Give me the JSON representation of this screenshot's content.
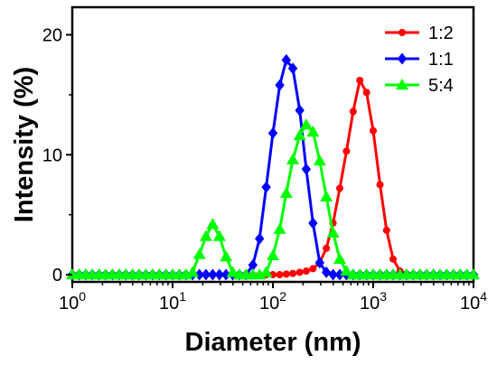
{
  "chart_data": {
    "type": "line",
    "title": "",
    "xlabel": "Diameter (nm)",
    "ylabel": "Intensity (%)",
    "xscale": "log",
    "xlim": [
      1,
      10000
    ],
    "ylim": [
      -0.6,
      22.3
    ],
    "x_ticks": [
      {
        "value": 1,
        "base": "10",
        "exp": "0"
      },
      {
        "value": 10,
        "base": "10",
        "exp": "1"
      },
      {
        "value": 100,
        "base": "10",
        "exp": "2"
      },
      {
        "value": 1000,
        "base": "10",
        "exp": "3"
      },
      {
        "value": 10000,
        "base": "10",
        "exp": "4"
      }
    ],
    "y_ticks": [
      {
        "value": 0,
        "label": "0"
      },
      {
        "value": 10,
        "label": "10"
      },
      {
        "value": 20,
        "label": "20"
      }
    ],
    "grid": false,
    "legend_position": "top-right",
    "x": [
      1.0,
      1.17,
      1.36,
      1.58,
      1.85,
      2.15,
      2.51,
      2.93,
      3.41,
      3.98,
      4.64,
      5.41,
      6.31,
      7.36,
      8.58,
      10.0,
      11.7,
      13.6,
      15.8,
      18.5,
      21.5,
      25.1,
      29.3,
      34.1,
      39.8,
      46.4,
      54.1,
      63.1,
      73.6,
      85.8,
      100.0,
      117,
      136,
      158,
      185,
      215,
      251,
      293,
      341,
      398,
      464,
      541,
      631,
      736,
      858,
      1000,
      1170,
      1360,
      1580,
      1850,
      2150,
      2510,
      2930,
      3410,
      3980,
      4640,
      5410,
      6310,
      7360,
      8580,
      10000
    ],
    "series": [
      {
        "name": "1:2",
        "color": "#ff0000",
        "marker": "circle",
        "values": [
          0,
          0,
          0,
          0,
          0,
          0,
          0,
          0,
          0,
          0,
          0,
          0,
          0,
          0,
          0,
          0,
          0,
          0,
          0,
          0,
          0,
          0,
          0,
          0,
          0,
          0,
          0,
          0,
          0,
          0,
          0,
          0,
          0.05,
          0.1,
          0.2,
          0.3,
          0.5,
          1.0,
          2.2,
          4.3,
          7.2,
          10.3,
          13.6,
          16.2,
          15.2,
          12.0,
          7.5,
          3.7,
          1.3,
          0.3,
          0.05,
          0,
          0,
          0,
          0,
          0,
          0,
          0,
          0,
          0,
          0
        ]
      },
      {
        "name": "1:1",
        "color": "#0000ff",
        "marker": "diamond",
        "values": [
          0,
          0,
          0,
          0,
          0,
          0,
          0,
          0,
          0,
          0,
          0,
          0,
          0,
          0,
          0,
          0,
          0,
          0,
          0,
          0,
          0,
          0,
          0,
          0,
          0,
          0,
          0,
          0.8,
          3.0,
          7.3,
          11.8,
          15.8,
          17.9,
          17.2,
          13.7,
          8.8,
          4.3,
          1.0,
          0.2,
          0,
          0,
          0,
          0,
          0,
          0,
          0,
          0,
          0,
          0,
          0,
          0,
          0,
          0,
          0,
          0,
          0,
          0,
          0,
          0,
          0,
          0
        ]
      },
      {
        "name": "5:4",
        "color": "#00ff00",
        "marker": "triangle",
        "values": [
          0,
          0,
          0,
          0,
          0,
          0,
          0,
          0,
          0,
          0,
          0,
          0,
          0,
          0,
          0,
          0,
          0,
          0,
          0.2,
          1.7,
          3.2,
          4.2,
          3.2,
          1.5,
          0.2,
          0,
          0,
          0,
          0,
          0.2,
          1.6,
          3.8,
          6.8,
          9.6,
          11.6,
          12.5,
          11.9,
          9.5,
          6.5,
          3.5,
          1.3,
          0.3,
          0,
          0,
          0,
          0,
          0,
          0,
          0,
          0,
          0,
          0,
          0,
          0,
          0,
          0,
          0,
          0,
          0,
          0,
          0
        ]
      }
    ]
  }
}
